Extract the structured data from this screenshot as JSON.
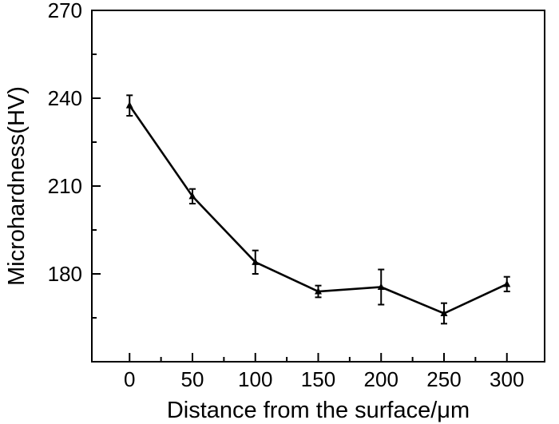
{
  "chart_data": {
    "type": "line",
    "xlabel": "Distance from the surface/μm",
    "ylabel": "Microhardness(HV)",
    "xlim": [
      -30,
      330
    ],
    "ylim": [
      150,
      270
    ],
    "x_ticks": [
      0,
      50,
      100,
      150,
      200,
      250,
      300
    ],
    "y_ticks": [
      180,
      210,
      240,
      270
    ],
    "grid": false,
    "legend": "none",
    "marker": "triangle",
    "color": "#000000",
    "series": [
      {
        "x": [
          0,
          50,
          100,
          150,
          200,
          250,
          300
        ],
        "y": [
          237.5,
          206.5,
          184,
          174,
          175.5,
          166.5,
          176.5
        ],
        "error": [
          3.5,
          2.5,
          4,
          2,
          6,
          3.5,
          2.5
        ]
      }
    ]
  }
}
